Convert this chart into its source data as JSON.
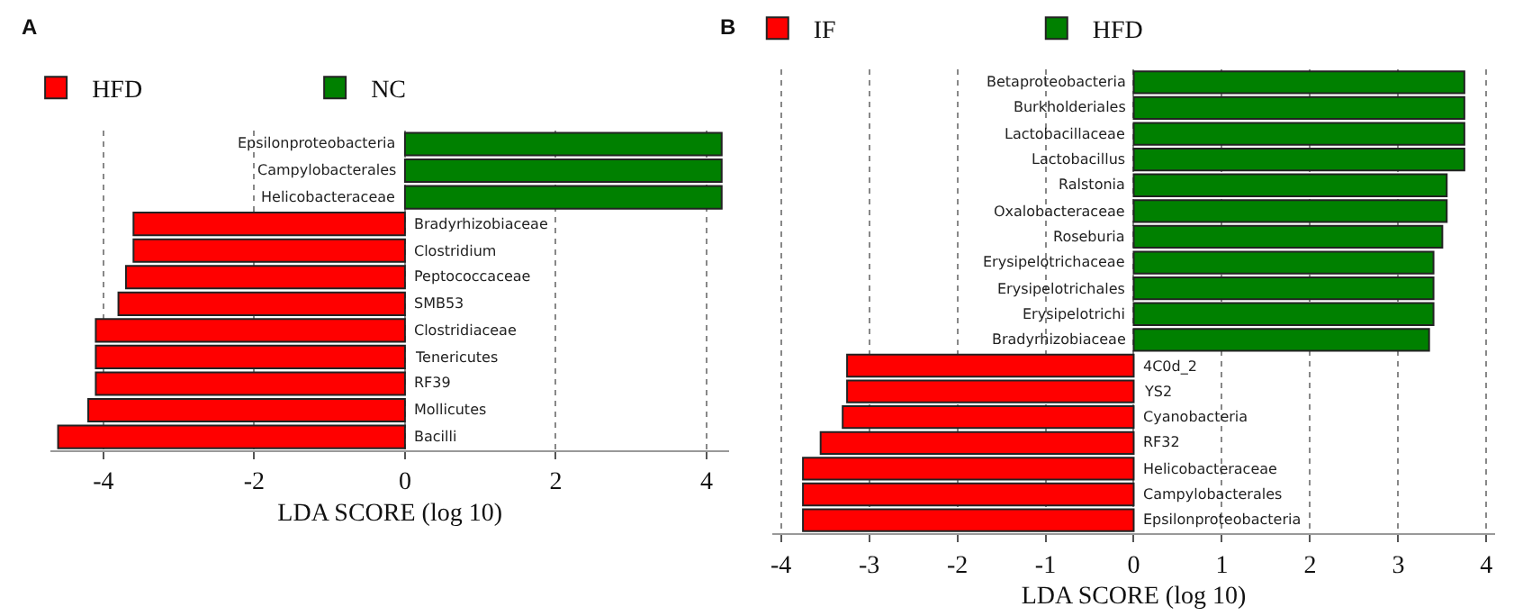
{
  "chart_data": [
    {
      "type": "bar",
      "orientation": "horizontal",
      "title": "A",
      "xlabel": "LDA SCORE (log 10)",
      "categories": [
        "Epsilonproteobacteria",
        "Campylobacterales",
        "Helicobacteraceae",
        "Bradyrhizobiaceae",
        "Clostridium",
        "Peptococcaceae",
        "SMB53",
        "Clostridiaceae",
        "Tenericutes",
        "RF39",
        "Mollicutes",
        "Bacilli"
      ],
      "series": [
        {
          "name": "HFD",
          "color": "#ff0000",
          "values": [
            null,
            null,
            null,
            -3.6,
            -3.6,
            -3.7,
            -3.8,
            -4.1,
            -4.1,
            -4.1,
            -4.2,
            -4.6
          ]
        },
        {
          "name": "NC",
          "color": "#008000",
          "values": [
            4.2,
            4.2,
            4.2,
            null,
            null,
            null,
            null,
            null,
            null,
            null,
            null,
            null
          ]
        }
      ],
      "xlim": [
        -4.7,
        4.3
      ],
      "xticks": [
        -4,
        -2,
        0,
        2,
        4
      ],
      "grid": "x",
      "legend": "top left"
    },
    {
      "type": "bar",
      "orientation": "horizontal",
      "title": "B",
      "xlabel": "LDA SCORE (log 10)",
      "categories": [
        "Betaproteobacteria",
        "Burkholderiales",
        "Lactobacillaceae",
        "Lactobacillus",
        "Ralstonia",
        "Oxalobacteraceae",
        "Roseburia",
        "Erysipelotrichaceae",
        "Erysipelotrichales",
        "Erysipelotrichi",
        "Bradyrhizobiaceae",
        "4C0d_2",
        "YS2",
        "Cyanobacteria",
        "RF32",
        "Helicobacteraceae",
        "Campylobacterales",
        "Epsilonproteobacteria"
      ],
      "series": [
        {
          "name": "IF",
          "color": "#ff0000",
          "values": [
            null,
            null,
            null,
            null,
            null,
            null,
            null,
            null,
            null,
            null,
            null,
            -3.25,
            -3.25,
            -3.3,
            -3.55,
            -3.75,
            -3.75,
            -3.75
          ]
        },
        {
          "name": "HFD",
          "color": "#008000",
          "values": [
            3.75,
            3.75,
            3.75,
            3.75,
            3.55,
            3.55,
            3.5,
            3.4,
            3.4,
            3.4,
            3.35,
            null,
            null,
            null,
            null,
            null,
            null,
            null
          ]
        }
      ],
      "xlim": [
        -4.1,
        4.1
      ],
      "xticks": [
        -4,
        -3,
        -2,
        -1,
        0,
        1,
        2,
        3,
        4
      ],
      "grid": "x",
      "legend": "top left"
    }
  ]
}
